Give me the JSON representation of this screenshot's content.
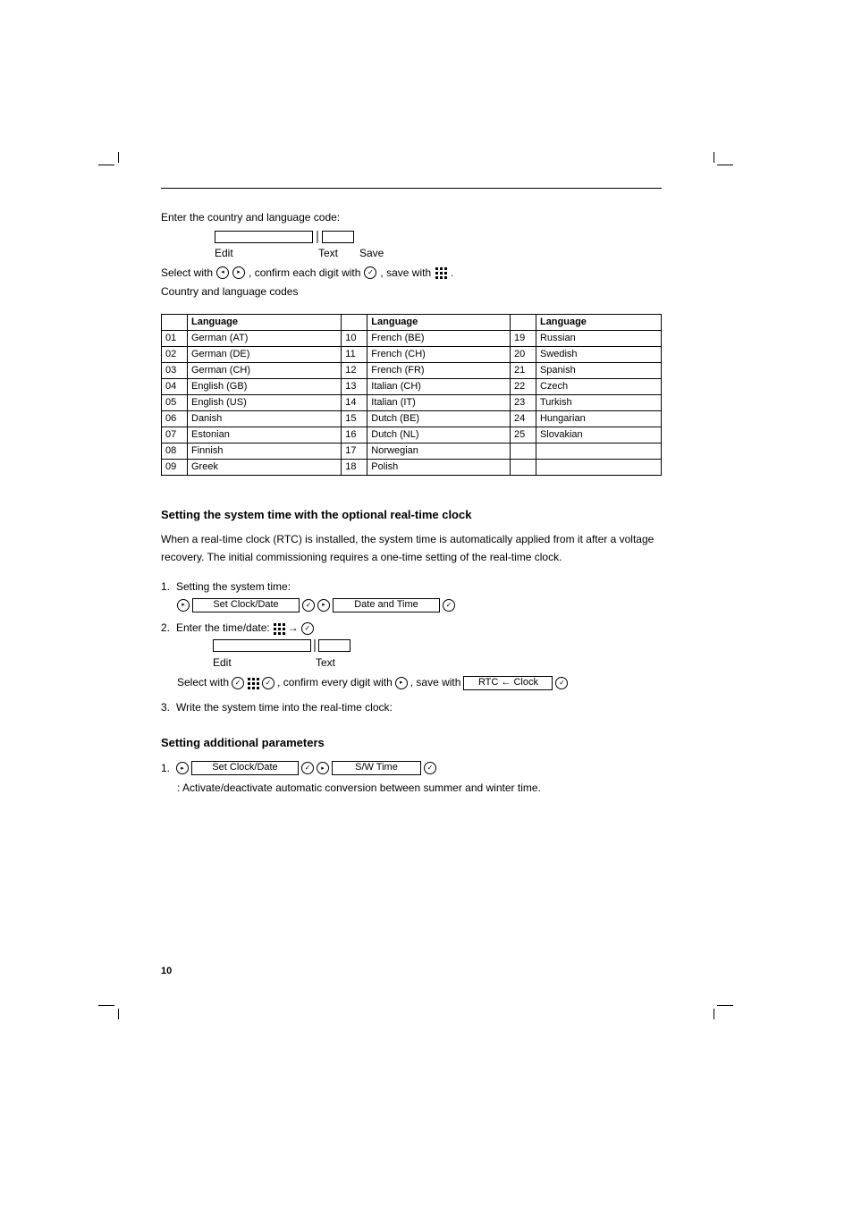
{
  "page_number": "10",
  "intro": {
    "line1": "Enter the country and language code:",
    "edit_label": "Edit",
    "text_label": "Text",
    "save_label": "Save",
    "line2_prefix": "Select with",
    "line2_mid": ", confirm each digit with",
    "line2_suffix": ", save with",
    "line3": "Country and language codes"
  },
  "table": {
    "headers": [
      "",
      "Language",
      "",
      "Language",
      "",
      "Language"
    ],
    "rows": [
      [
        "01",
        "German (AT)",
        "10",
        "French (BE)",
        "19",
        "Russian"
      ],
      [
        "02",
        "German (DE)",
        "11",
        "French (CH)",
        "20",
        "Swedish"
      ],
      [
        "03",
        "German (CH)",
        "12",
        "French (FR)",
        "21",
        "Spanish"
      ],
      [
        "04",
        "English (GB)",
        "13",
        "Italian (CH)",
        "22",
        "Czech"
      ],
      [
        "05",
        "English (US)",
        "14",
        "Italian (IT)",
        "23",
        "Turkish"
      ],
      [
        "06",
        "Danish",
        "15",
        "Dutch (BE)",
        "24",
        "Hungarian"
      ],
      [
        "07",
        "Estonian",
        "16",
        "Dutch (NL)",
        "25",
        "Slovakian"
      ],
      [
        "08",
        "Finnish",
        "17",
        "Norwegian",
        "",
        ""
      ],
      [
        "09",
        "Greek",
        "18",
        "Polish",
        "",
        ""
      ]
    ]
  },
  "section": {
    "title": "Setting the system time with the optional real-time clock",
    "p1": "When a real-time clock (RTC) is installed, the system time is automatically applied from it after a voltage recovery. The initial commissioning requires a one-time setting of the real-time clock.",
    "s1_num": "1.",
    "s1_text": "Setting the system time:",
    "s1_box1": "Set Clock/Date",
    "s1_box2": "Date and Time",
    "s2_num": "2.",
    "s2_text_a": "Enter the time/date:",
    "s2_edit": "Edit",
    "s2_text_b": "Text",
    "s2_text_c": "Select with",
    "s2_text_d": ", confirm every digit with",
    "s2_text_e": ", save with",
    "s3_num": "3.",
    "s3_text": "Write the system time into the real-time clock:",
    "s3_box": "RTC ← Clock",
    "title2": "Setting additional parameters",
    "s4_num": "1.",
    "s4_box1": "Set Clock/Date",
    "s4_box2": "S/W Time",
    "s4_text": ": Activate/deactivate automatic conversion between summer and winter time."
  }
}
